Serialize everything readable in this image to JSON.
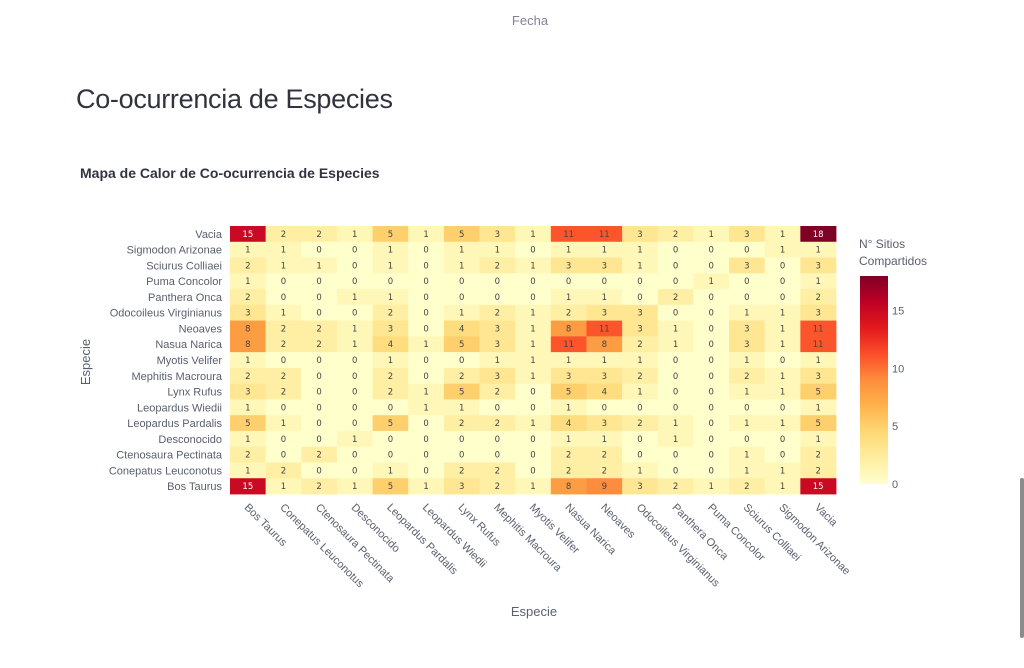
{
  "top_label": "Fecha",
  "page_title": "Co-ocurrencia de Especies",
  "chart_data": {
    "type": "heatmap",
    "title": "Mapa de Calor de Co-ocurrencia de Especies",
    "xlabel": "Especie",
    "ylabel": "Especie",
    "colorbar_title": [
      "N° Sitios",
      "Compartidos"
    ],
    "colorbar_ticks": [
      0,
      5,
      10,
      15
    ],
    "zmin": 0,
    "zmax": 18,
    "colorscale": [
      "#ffffcc",
      "#ffeda0",
      "#fed976",
      "#feb24c",
      "#fd8d3c",
      "#fc4e2a",
      "#e31a1c",
      "#bd0026",
      "#800026"
    ],
    "x": [
      "Bos Taurus",
      "Conepatus Leuconotus",
      "Ctenosaura Pectinata",
      "Desconocido",
      "Leopardus Pardalis",
      "Leopardus Wiedii",
      "Lynx Rufus",
      "Mephitis Macroura",
      "Myotis Velifer",
      "Nasua Narica",
      "Neoaves",
      "Odocoileus Virginianus",
      "Panthera Onca",
      "Puma Concolor",
      "Sciurus Colliaei",
      "Sigmodon Arizonae",
      "Vacia"
    ],
    "y": [
      "Vacia",
      "Sigmodon Arizonae",
      "Sciurus Colliaei",
      "Puma Concolor",
      "Panthera Onca",
      "Odocoileus Virginianus",
      "Neoaves",
      "Nasua Narica",
      "Myotis Velifer",
      "Mephitis Macroura",
      "Lynx Rufus",
      "Leopardus Wiedii",
      "Leopardus Pardalis",
      "Desconocido",
      "Ctenosaura Pectinata",
      "Conepatus Leuconotus",
      "Bos Taurus"
    ],
    "z": [
      [
        15,
        2,
        2,
        1,
        5,
        1,
        5,
        3,
        1,
        11,
        11,
        3,
        2,
        1,
        3,
        1,
        18
      ],
      [
        1,
        1,
        0,
        0,
        1,
        0,
        1,
        1,
        0,
        1,
        1,
        1,
        0,
        0,
        0,
        1,
        1
      ],
      [
        2,
        1,
        1,
        0,
        1,
        0,
        1,
        2,
        1,
        3,
        3,
        1,
        0,
        0,
        3,
        0,
        3
      ],
      [
        1,
        0,
        0,
        0,
        0,
        0,
        0,
        0,
        0,
        0,
        0,
        0,
        0,
        1,
        0,
        0,
        1
      ],
      [
        2,
        0,
        0,
        1,
        1,
        0,
        0,
        0,
        0,
        1,
        1,
        0,
        2,
        0,
        0,
        0,
        2
      ],
      [
        3,
        1,
        0,
        0,
        2,
        0,
        1,
        2,
        1,
        2,
        3,
        3,
        0,
        0,
        1,
        1,
        3
      ],
      [
        8,
        2,
        2,
        1,
        3,
        0,
        4,
        3,
        1,
        8,
        11,
        3,
        1,
        0,
        3,
        1,
        11
      ],
      [
        8,
        2,
        2,
        1,
        4,
        1,
        5,
        3,
        1,
        11,
        8,
        2,
        1,
        0,
        3,
        1,
        11
      ],
      [
        1,
        0,
        0,
        0,
        1,
        0,
        0,
        1,
        1,
        1,
        1,
        1,
        0,
        0,
        1,
        0,
        1
      ],
      [
        2,
        2,
        0,
        0,
        2,
        0,
        2,
        3,
        1,
        3,
        3,
        2,
        0,
        0,
        2,
        1,
        3
      ],
      [
        3,
        2,
        0,
        0,
        2,
        1,
        5,
        2,
        0,
        5,
        4,
        1,
        0,
        0,
        1,
        1,
        5
      ],
      [
        1,
        0,
        0,
        0,
        0,
        1,
        1,
        0,
        0,
        1,
        0,
        0,
        0,
        0,
        0,
        0,
        1
      ],
      [
        5,
        1,
        0,
        0,
        5,
        0,
        2,
        2,
        1,
        4,
        3,
        2,
        1,
        0,
        1,
        1,
        5
      ],
      [
        1,
        0,
        0,
        1,
        0,
        0,
        0,
        0,
        0,
        1,
        1,
        0,
        1,
        0,
        0,
        0,
        1
      ],
      [
        2,
        0,
        2,
        0,
        0,
        0,
        0,
        0,
        0,
        2,
        2,
        0,
        0,
        0,
        1,
        0,
        2
      ],
      [
        1,
        2,
        0,
        0,
        1,
        0,
        2,
        2,
        0,
        2,
        2,
        1,
        0,
        0,
        1,
        1,
        2
      ],
      [
        15,
        1,
        2,
        1,
        5,
        1,
        3,
        2,
        1,
        8,
        9,
        3,
        2,
        1,
        2,
        1,
        15
      ]
    ]
  }
}
